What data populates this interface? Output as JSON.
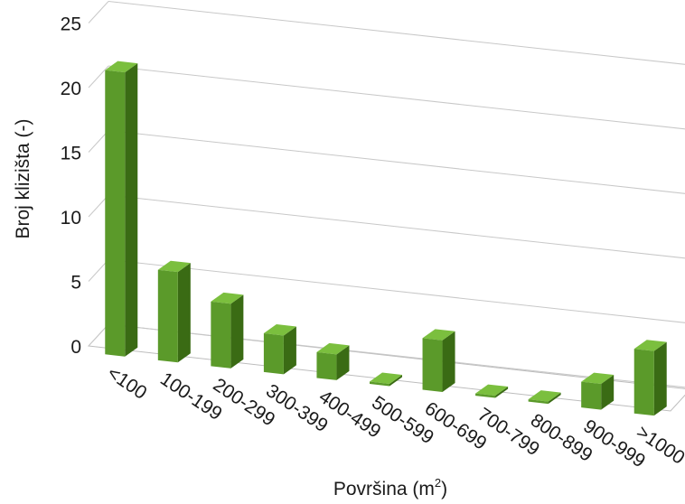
{
  "chart_data": {
    "type": "bar",
    "categories": [
      "<100",
      "100-199",
      "200-299",
      "300-399",
      "400-499",
      "500-599",
      "600-699",
      "700-799",
      "800-899",
      "900-999",
      ">1000"
    ],
    "values": [
      22,
      7,
      5,
      3,
      2,
      0,
      4,
      0,
      0,
      2,
      5
    ],
    "xlabel": "Površina (m",
    "xlabel_superscript": "2",
    "xlabel_suffix": ")",
    "ylabel": "Broj klizišta (-)",
    "ylim": [
      0,
      25
    ],
    "yticks": [
      0,
      5,
      10,
      15,
      20,
      25
    ],
    "grid": true,
    "legend": "none",
    "style": "3d",
    "bar_color": "#5b9a2a",
    "bar_side_color": "#3a6b14",
    "bar_top_color": "#7bbf3e"
  }
}
